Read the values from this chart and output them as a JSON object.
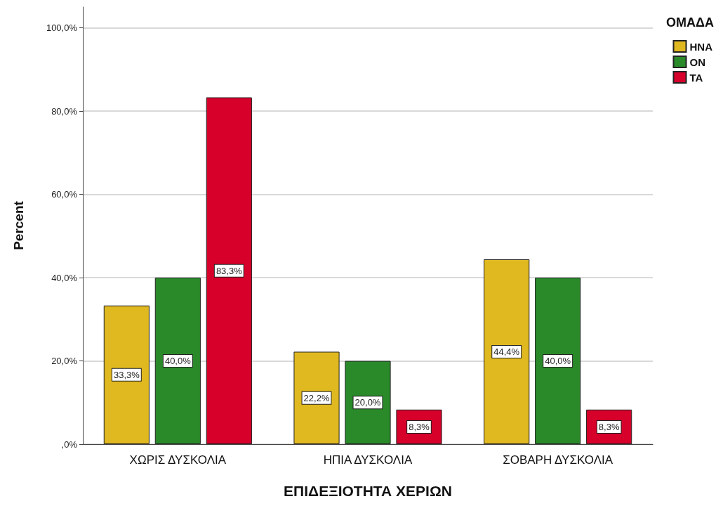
{
  "chart_data": {
    "type": "bar",
    "xlabel": "ΕΠΙΔΕΞΙΟΤΗΤΑ ΧΕΡΙΩΝ",
    "ylabel": "Percent",
    "legend_title": "ΟΜΑΔΑ",
    "legend": "top right",
    "grid": "y",
    "categories": [
      "ΧΩΡΙΣ ΔΥΣΚΟΛΙΑ",
      "ΗΠΙΑ ΔΥΣΚΟΛΙΑ",
      "ΣΟΒΑΡΗ ΔΥΣΚΟΛΙΑ"
    ],
    "series": [
      {
        "name": "ΗΝΑ",
        "color": "#e0b820",
        "values": [
          33.3,
          22.2,
          44.4
        ],
        "value_labels": [
          "33,3%",
          "22,2%",
          "44,4%"
        ]
      },
      {
        "name": "ΟΝ",
        "color": "#2a8a2a",
        "values": [
          40.0,
          20.0,
          40.0
        ],
        "value_labels": [
          "40,0%",
          "20,0%",
          "40,0%"
        ]
      },
      {
        "name": "ΤΑ",
        "color": "#d6002a",
        "values": [
          83.3,
          8.3,
          8.3
        ],
        "value_labels": [
          "83,3%",
          "8,3%",
          "8,3%"
        ]
      }
    ],
    "ylim": [
      0,
      105
    ],
    "yticks": [
      {
        "value": 0,
        "label": ",0%"
      },
      {
        "value": 20,
        "label": "20,0%"
      },
      {
        "value": 40,
        "label": "40,0%"
      },
      {
        "value": 60,
        "label": "60,0%"
      },
      {
        "value": 80,
        "label": "80,0%"
      },
      {
        "value": 100,
        "label": "100,0%"
      }
    ]
  }
}
